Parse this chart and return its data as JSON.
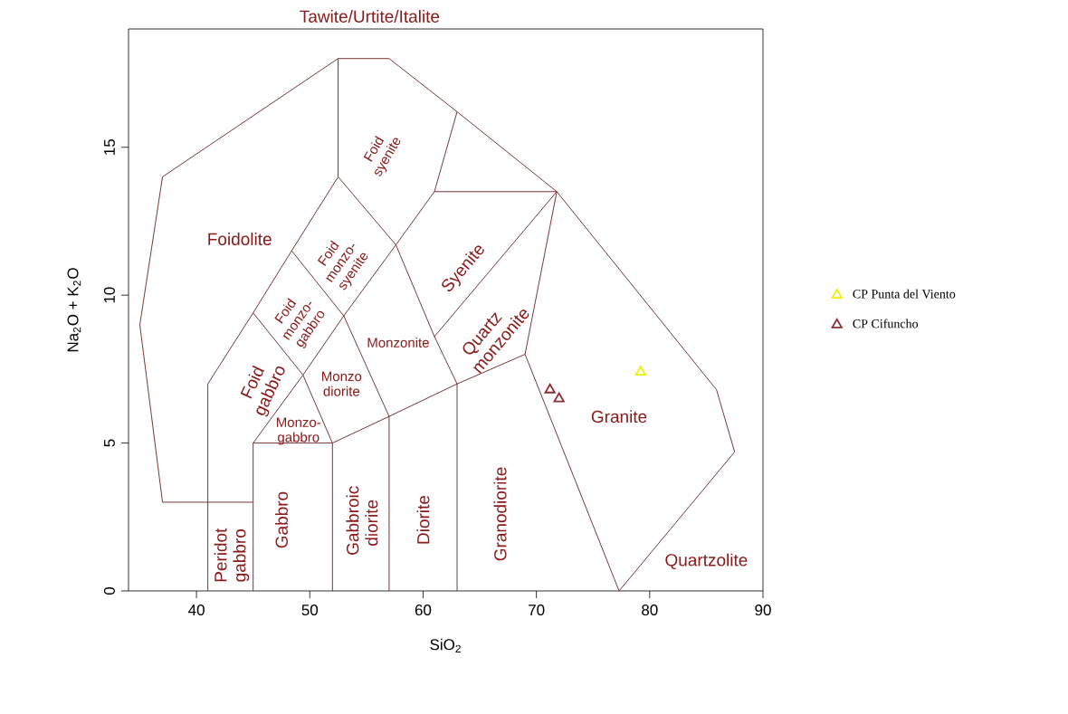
{
  "chart_data": {
    "type": "scatter",
    "xlabel": "SiO$_{2}$",
    "ylabel": "Na$_{2}$O + K$_{2}$O",
    "xlim": [
      34,
      90
    ],
    "ylim": [
      0,
      19
    ],
    "xticks": [
      40,
      50,
      60,
      70,
      80,
      90
    ],
    "yticks": [
      0,
      5,
      10,
      15
    ],
    "grid": false,
    "legend": "right",
    "series": [
      {
        "type": "line",
        "marker": "none",
        "color": "#6b1f23",
        "x": [
          45,
          37,
          35,
          37,
          52.5,
          57,
          63,
          71.8,
          85.9,
          87.5,
          77.3
        ],
        "values": [
          3,
          3,
          9,
          14,
          18,
          18,
          16.2,
          13.5,
          6.8,
          4.7,
          0
        ]
      },
      {
        "type": "line",
        "marker": "none",
        "color": "#6b1f23",
        "x": [
          41,
          41,
          45,
          48.4,
          52.5,
          52.5
        ],
        "values": [
          0,
          7,
          9.4,
          11.5,
          14,
          18
        ]
      },
      {
        "type": "line",
        "marker": "none",
        "color": "#6b1f23",
        "x": [
          45,
          45,
          52,
          52
        ],
        "values": [
          0,
          5,
          5,
          0
        ]
      },
      {
        "type": "line",
        "marker": "none",
        "color": "#6b1f23",
        "x": [
          45,
          49.4,
          53,
          57.6,
          61,
          63
        ],
        "values": [
          5,
          7.3,
          9.3,
          11.7,
          13.5,
          16.2
        ]
      },
      {
        "type": "line",
        "marker": "none",
        "color": "#6b1f23",
        "x": [
          45,
          49.4,
          52
        ],
        "values": [
          9.4,
          7.3,
          5
        ]
      },
      {
        "type": "line",
        "marker": "none",
        "color": "#6b1f23",
        "x": [
          48.4,
          53,
          57,
          57
        ],
        "values": [
          11.5,
          9.3,
          5.9,
          0
        ]
      },
      {
        "type": "line",
        "marker": "none",
        "color": "#6b1f23",
        "x": [
          52.5,
          57.6,
          61,
          63,
          63
        ],
        "values": [
          14,
          11.7,
          8.6,
          7,
          0
        ]
      },
      {
        "type": "line",
        "marker": "none",
        "color": "#6b1f23",
        "x": [
          52,
          57,
          63,
          69,
          71.8
        ],
        "values": [
          5,
          5.9,
          7,
          8,
          13.5
        ]
      },
      {
        "type": "line",
        "marker": "none",
        "color": "#6b1f23",
        "x": [
          61,
          71.8
        ],
        "values": [
          8.6,
          13.5
        ]
      },
      {
        "type": "line",
        "marker": "none",
        "color": "#6b1f23",
        "x": [
          61,
          71.8
        ],
        "values": [
          13.5,
          13.5
        ]
      },
      {
        "type": "line",
        "marker": "none",
        "color": "#6b1f23",
        "x": [
          69,
          77.3
        ],
        "values": [
          8,
          0
        ]
      },
      {
        "name": "CP Punta del Viento",
        "marker": "triangle",
        "color": "#f0f000",
        "x": [
          79.2
        ],
        "values": [
          7.4
        ]
      },
      {
        "name": "CP Cifuncho",
        "marker": "triangle",
        "color": "#8b2e36",
        "x": [
          71.2,
          72.0
        ],
        "values": [
          6.8,
          6.5
        ]
      }
    ],
    "annotations": [
      "Tawite/Urtite/Italite",
      "Foidolite",
      "Foid syenite",
      "Foid monzo-syenite",
      "Syenite",
      "Foid monzo-gabbro",
      "Monzonite",
      "Quartz monzonite",
      "Foid gabbro",
      "Monzo diorite",
      "Monzo-gabbro",
      "Gabbro",
      "Gabbroic diorite",
      "Diorite",
      "Granodiorite",
      "Peridot gabbro",
      "Granite",
      "Quartzolite"
    ]
  }
}
